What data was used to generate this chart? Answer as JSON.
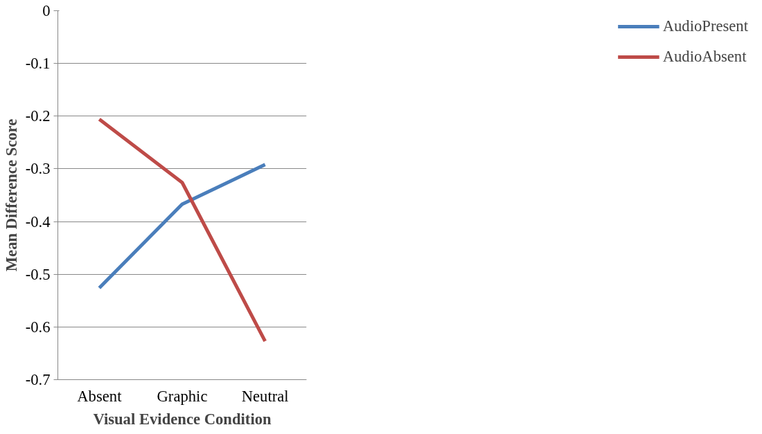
{
  "chart_data": {
    "type": "line",
    "xlabel": "Visual Evidence Condition",
    "ylabel": "Mean Difference Score",
    "categories": [
      "Absent",
      "Graphic",
      "Neutral"
    ],
    "series": [
      {
        "name": "AudioPresent",
        "color": "#4a7ebb",
        "values": [
          -0.526,
          -0.367,
          -0.292
        ]
      },
      {
        "name": "AudioAbsent",
        "color": "#be4b48",
        "values": [
          -0.206,
          -0.326,
          -0.627
        ]
      }
    ],
    "ylim": [
      -0.7,
      0
    ],
    "yticks": [
      -0.7,
      -0.6,
      -0.5,
      -0.4,
      -0.3,
      -0.2,
      -0.1,
      0
    ],
    "grid": "y",
    "legend": "right",
    "line_style": "solid"
  }
}
